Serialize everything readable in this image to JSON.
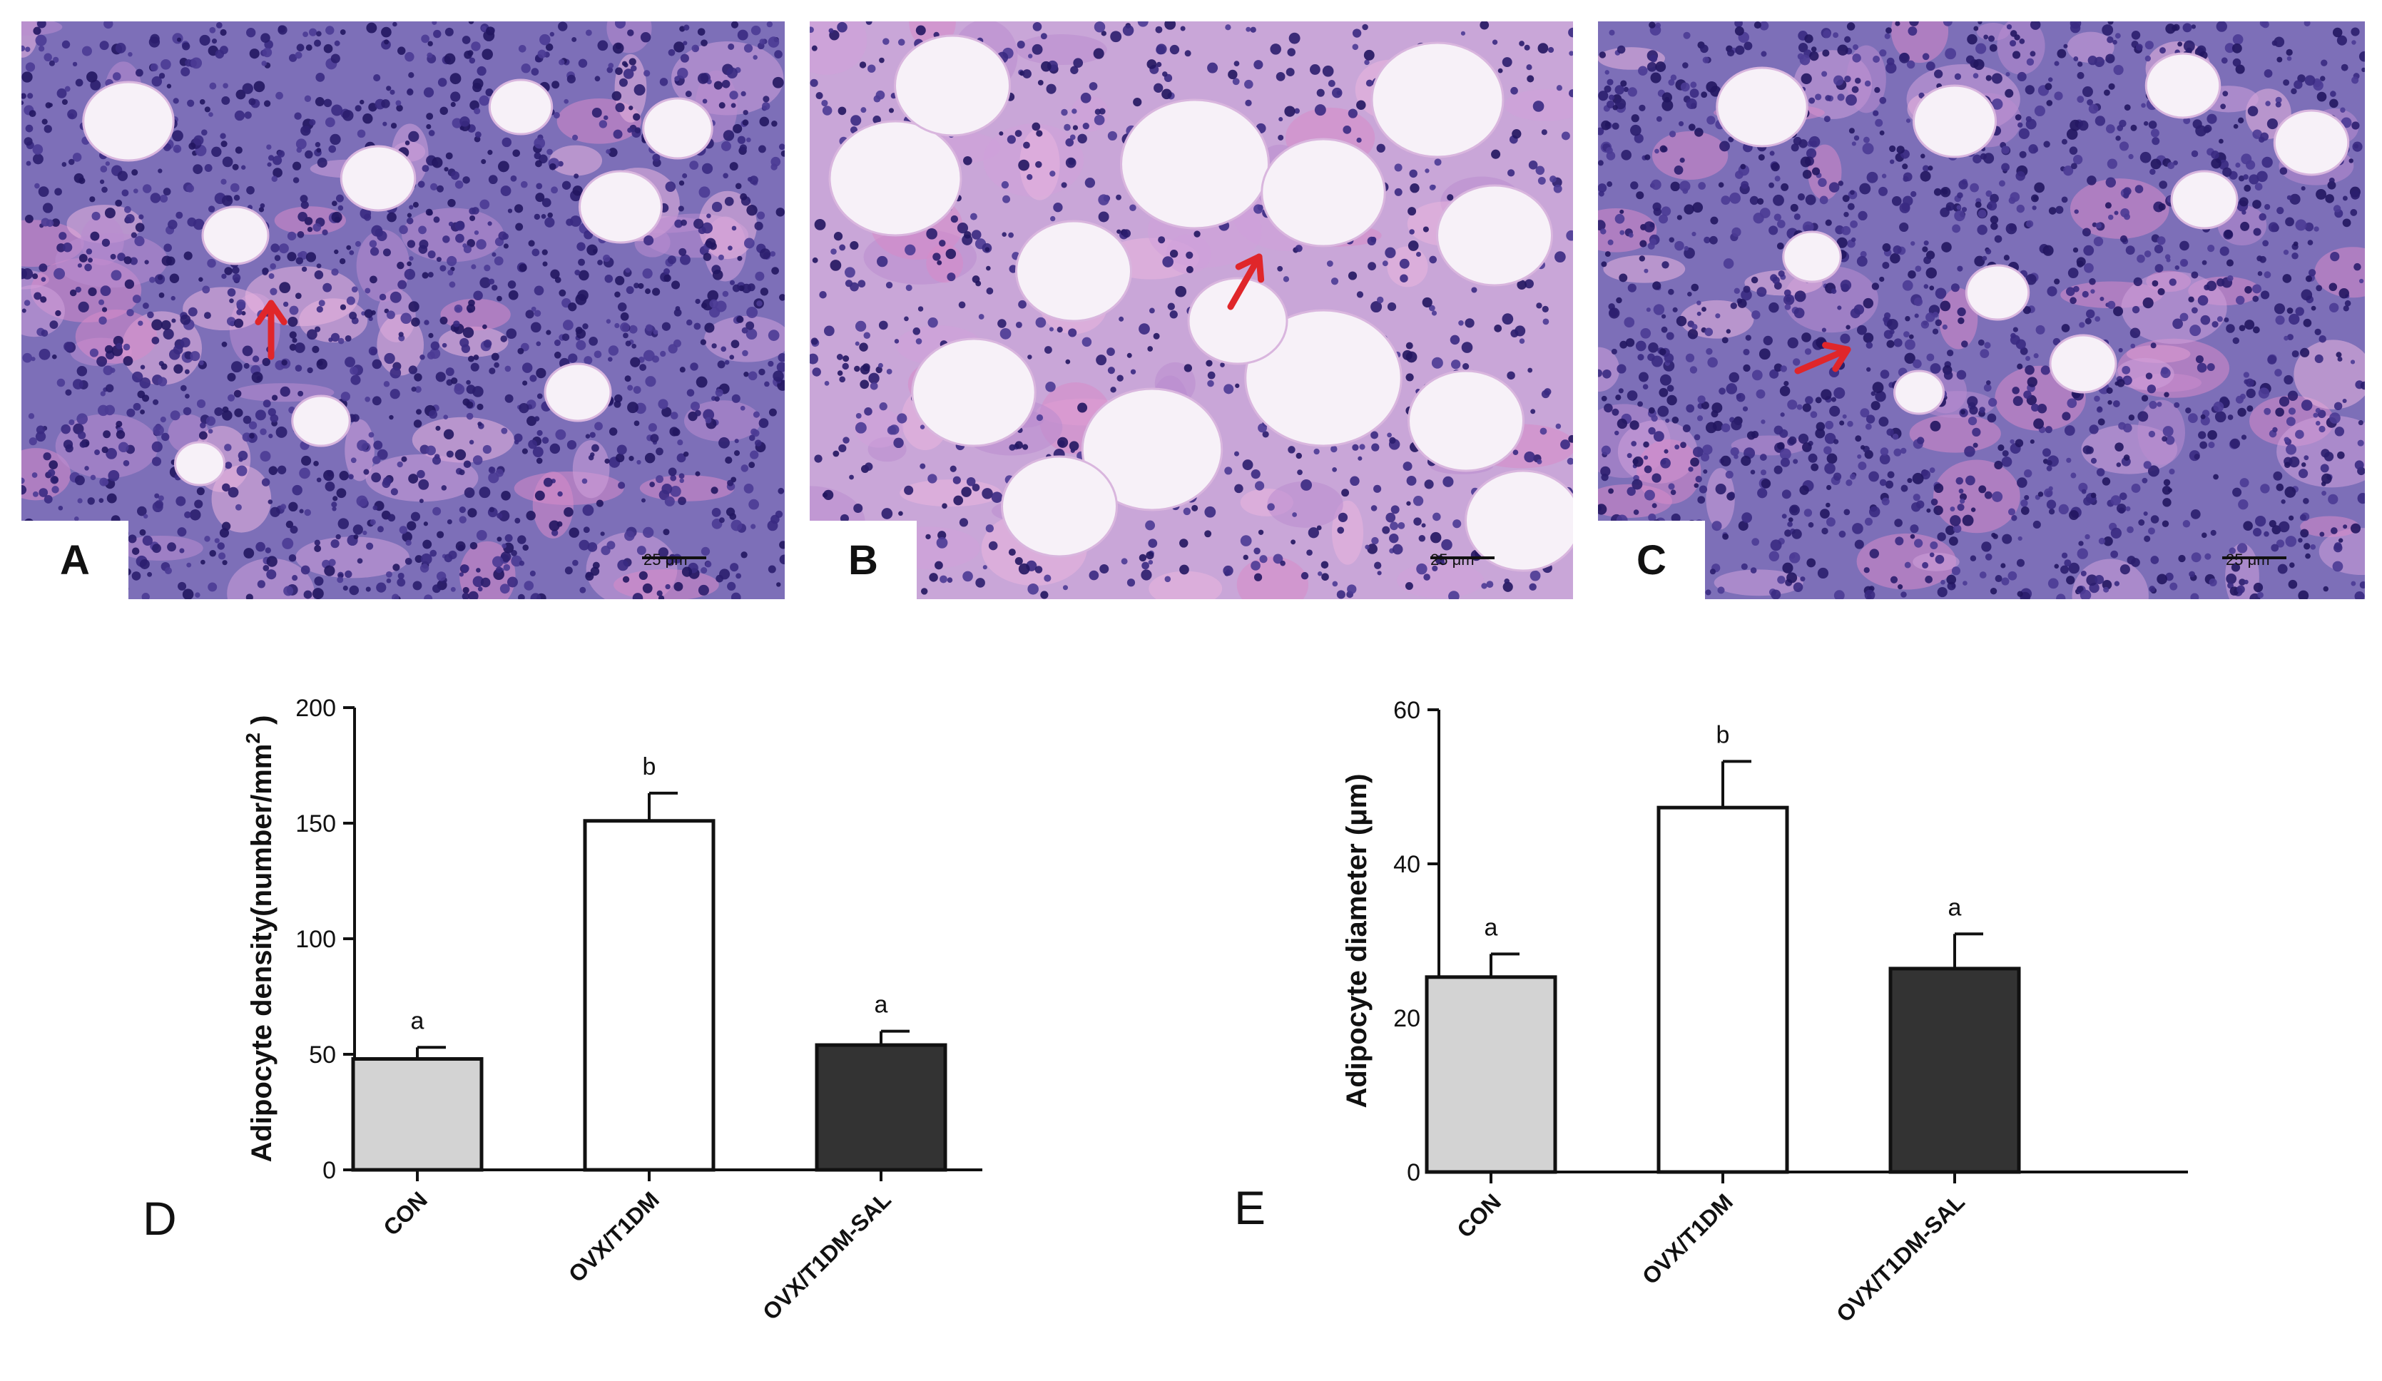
{
  "micrographs": [
    {
      "letter": "A",
      "scale_label": "25 μm",
      "arrow_color": "#e0262a"
    },
    {
      "letter": "B",
      "scale_label": "25 μm",
      "arrow_color": "#e0262a"
    },
    {
      "letter": "C",
      "scale_label": "25 μm",
      "arrow_color": "#e0262a"
    }
  ],
  "chart_data": [
    {
      "panel": "D",
      "type": "bar",
      "categories": [
        "CON",
        "OVX/T1DM",
        "OVX/T1DM-SAL"
      ],
      "values": [
        48,
        151,
        54
      ],
      "errors": [
        5,
        12,
        6
      ],
      "significance": [
        "a",
        "b",
        "a"
      ],
      "bar_colors": [
        "#d3d3d3",
        "#ffffff",
        "#333333"
      ],
      "ylabel": "Adipocyte density(number/mm",
      "ylabel_sup": "2",
      "ylabel_end": " )",
      "ylim": [
        0,
        200
      ],
      "yticks": [
        "0",
        "50",
        "100",
        "150",
        "200"
      ]
    },
    {
      "panel": "E",
      "type": "bar",
      "categories": [
        "CON",
        "OVX/T1DM",
        "OVX/T1DM-SAL"
      ],
      "values": [
        25.3,
        47.3,
        26.4
      ],
      "errors": [
        3.0,
        6.0,
        4.5
      ],
      "significance": [
        "a",
        "b",
        "a"
      ],
      "bar_colors": [
        "#d3d3d3",
        "#ffffff",
        "#333333"
      ],
      "ylabel": "Adipocyte diameter (μm)",
      "ylabel_sup": "",
      "ylabel_end": "",
      "ylim": [
        0,
        60
      ],
      "yticks": [
        "0",
        "20",
        "40",
        "60"
      ]
    }
  ]
}
